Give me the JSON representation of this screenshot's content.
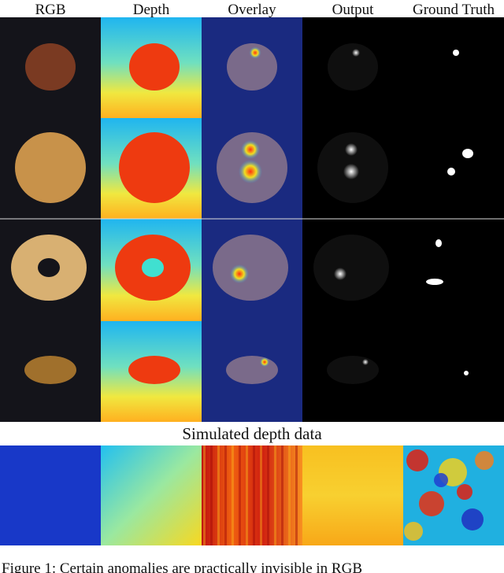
{
  "header": {
    "columns": [
      "RGB",
      "Depth",
      "Overlay",
      "Output",
      "Ground Truth"
    ]
  },
  "section_title": "Simulated depth data",
  "caption": "Figure 1: Certain anomalies are practically invisible in RGB"
}
